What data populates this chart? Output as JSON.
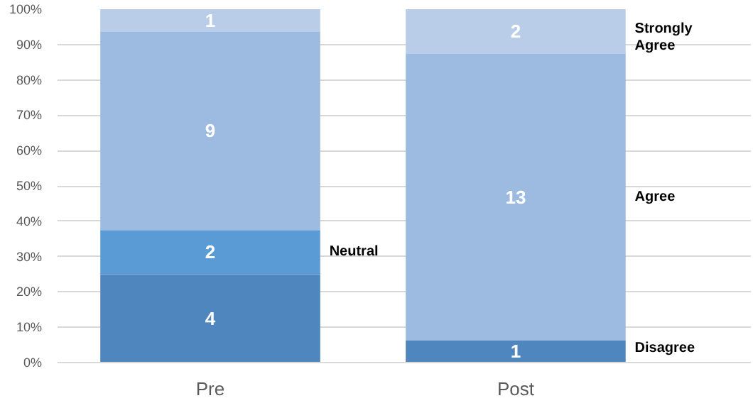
{
  "chart_data": {
    "type": "bar",
    "stacked": true,
    "categories": [
      "Pre",
      "Post"
    ],
    "series": [
      {
        "name": "Disagree",
        "color": "#4f86bd",
        "values": [
          25,
          6.25
        ]
      },
      {
        "name": "Neutral",
        "color": "#5b9bd5",
        "values": [
          12.5,
          0
        ]
      },
      {
        "name": "Agree",
        "color": "#9dbbe0",
        "values": [
          56.25,
          81.25
        ]
      },
      {
        "name": "Strongly Agree",
        "color": "#b9cde8",
        "values": [
          6.25,
          12.5
        ]
      }
    ],
    "annotations": [
      "4",
      "1",
      "2",
      "9",
      "13",
      "1",
      "2"
    ],
    "ylim": [
      0,
      100
    ],
    "yticks": [
      {
        "value": 0,
        "label": "0%"
      },
      {
        "value": 10,
        "label": "10%"
      },
      {
        "value": 20,
        "label": "20%"
      },
      {
        "value": 30,
        "label": "30%"
      },
      {
        "value": 40,
        "label": "40%"
      },
      {
        "value": 50,
        "label": "50%"
      },
      {
        "value": 60,
        "label": "60%"
      },
      {
        "value": 70,
        "label": "70%"
      },
      {
        "value": 80,
        "label": "80%"
      },
      {
        "value": 90,
        "label": "90%"
      },
      {
        "value": 100,
        "label": "100%"
      }
    ],
    "grid": "y"
  }
}
